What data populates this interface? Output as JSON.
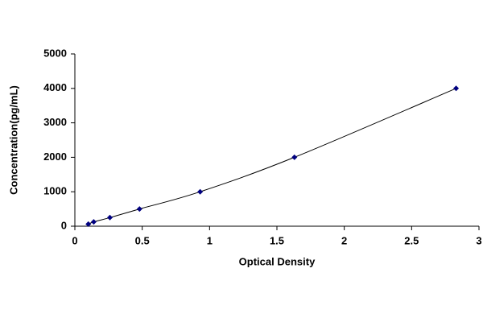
{
  "chart_data": {
    "type": "scatter",
    "x_label": "Optical Density",
    "y_label": "Concentration(pg/mL)",
    "x": [
      0.1,
      0.14,
      0.26,
      0.48,
      0.93,
      1.63,
      2.83
    ],
    "values": [
      62.5,
      125,
      250,
      500,
      1000,
      2000,
      4000
    ],
    "color": "#000080",
    "line_color": "#000000",
    "smooth": true,
    "xlim": [
      0,
      3
    ],
    "xticks": [
      0,
      0.5,
      1,
      1.5,
      2,
      2.5,
      3
    ],
    "ylim": [
      0,
      5000
    ],
    "yticks": [
      0,
      1000,
      2000,
      3000,
      4000,
      5000
    ],
    "grid": false
  }
}
